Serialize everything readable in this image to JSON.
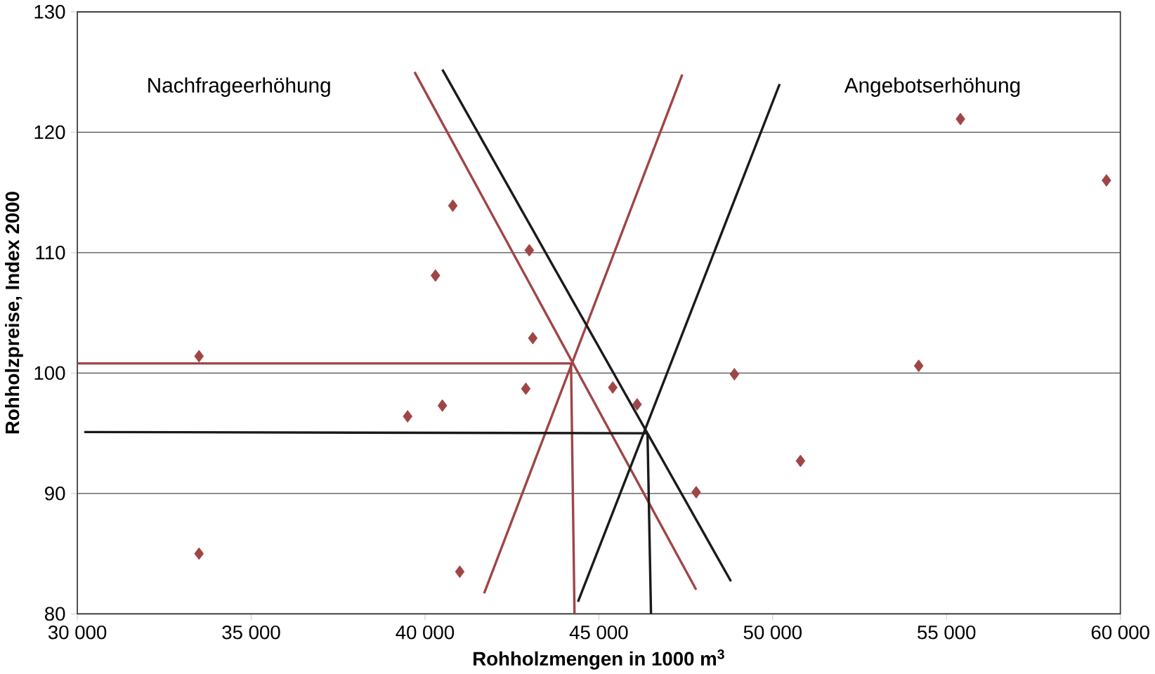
{
  "chart_data": {
    "type": "scatter",
    "xlabel": "Rohholzmengen in 1000 m$^{3}$",
    "ylabel": "Rohholzpreise, Index 2000",
    "xlim": [
      30000,
      60000
    ],
    "ylim": [
      80,
      130
    ],
    "xticks": [
      {
        "value": 30000,
        "label": "30 000"
      },
      {
        "value": 35000,
        "label": "35 000"
      },
      {
        "value": 40000,
        "label": "40 000"
      },
      {
        "value": 45000,
        "label": "45 000"
      },
      {
        "value": 50000,
        "label": "50 000"
      },
      {
        "value": 55000,
        "label": "55 000"
      },
      {
        "value": 60000,
        "label": "60 000"
      }
    ],
    "yticks": [
      80,
      90,
      100,
      110,
      120,
      130
    ],
    "grid": "y",
    "series": [
      {
        "marker": "diamond",
        "color": "#a04545",
        "x": [
          33500,
          33500,
          39500,
          40500,
          40300,
          40800,
          41000,
          42900,
          43100,
          43000,
          45400,
          46100,
          47800,
          48900,
          50800,
          54200,
          55400,
          59600
        ],
        "values": [
          101.4,
          85.0,
          96.4,
          97.3,
          108.1,
          113.9,
          83.5,
          98.7,
          102.9,
          110.2,
          98.8,
          97.4,
          90.1,
          99.9,
          92.7,
          100.6,
          121.1,
          116.0
        ]
      },
      {
        "type": "line",
        "color": "#a04545",
        "x": [
          39700,
          47800
        ],
        "values": [
          125.0,
          82.0
        ]
      },
      {
        "type": "line",
        "color": "#a04545",
        "x": [
          41700,
          47400
        ],
        "values": [
          81.7,
          124.8
        ]
      },
      {
        "type": "line",
        "color": "#1a1a1a",
        "x": [
          40500,
          48800
        ],
        "values": [
          125.2,
          82.7
        ]
      },
      {
        "type": "line",
        "color": "#1a1a1a",
        "x": [
          44400,
          50200
        ],
        "values": [
          81.0,
          124.0
        ]
      },
      {
        "type": "line",
        "color": "#a04545",
        "x": [
          44200,
          30000
        ],
        "values": [
          100.8,
          100.8
        ]
      },
      {
        "type": "line",
        "color": "#a04545",
        "x": [
          44200,
          44300
        ],
        "values": [
          100.8,
          80.0
        ]
      },
      {
        "type": "line",
        "color": "#1a1a1a",
        "x": [
          46400,
          30200
        ],
        "values": [
          95.0,
          95.1
        ]
      },
      {
        "type": "line",
        "color": "#1a1a1a",
        "x": [
          46400,
          46500
        ],
        "values": [
          95.0,
          80.0
        ]
      }
    ],
    "annotations": [
      "Nachfrageerhöhung",
      "Angebotserhöhung"
    ]
  }
}
